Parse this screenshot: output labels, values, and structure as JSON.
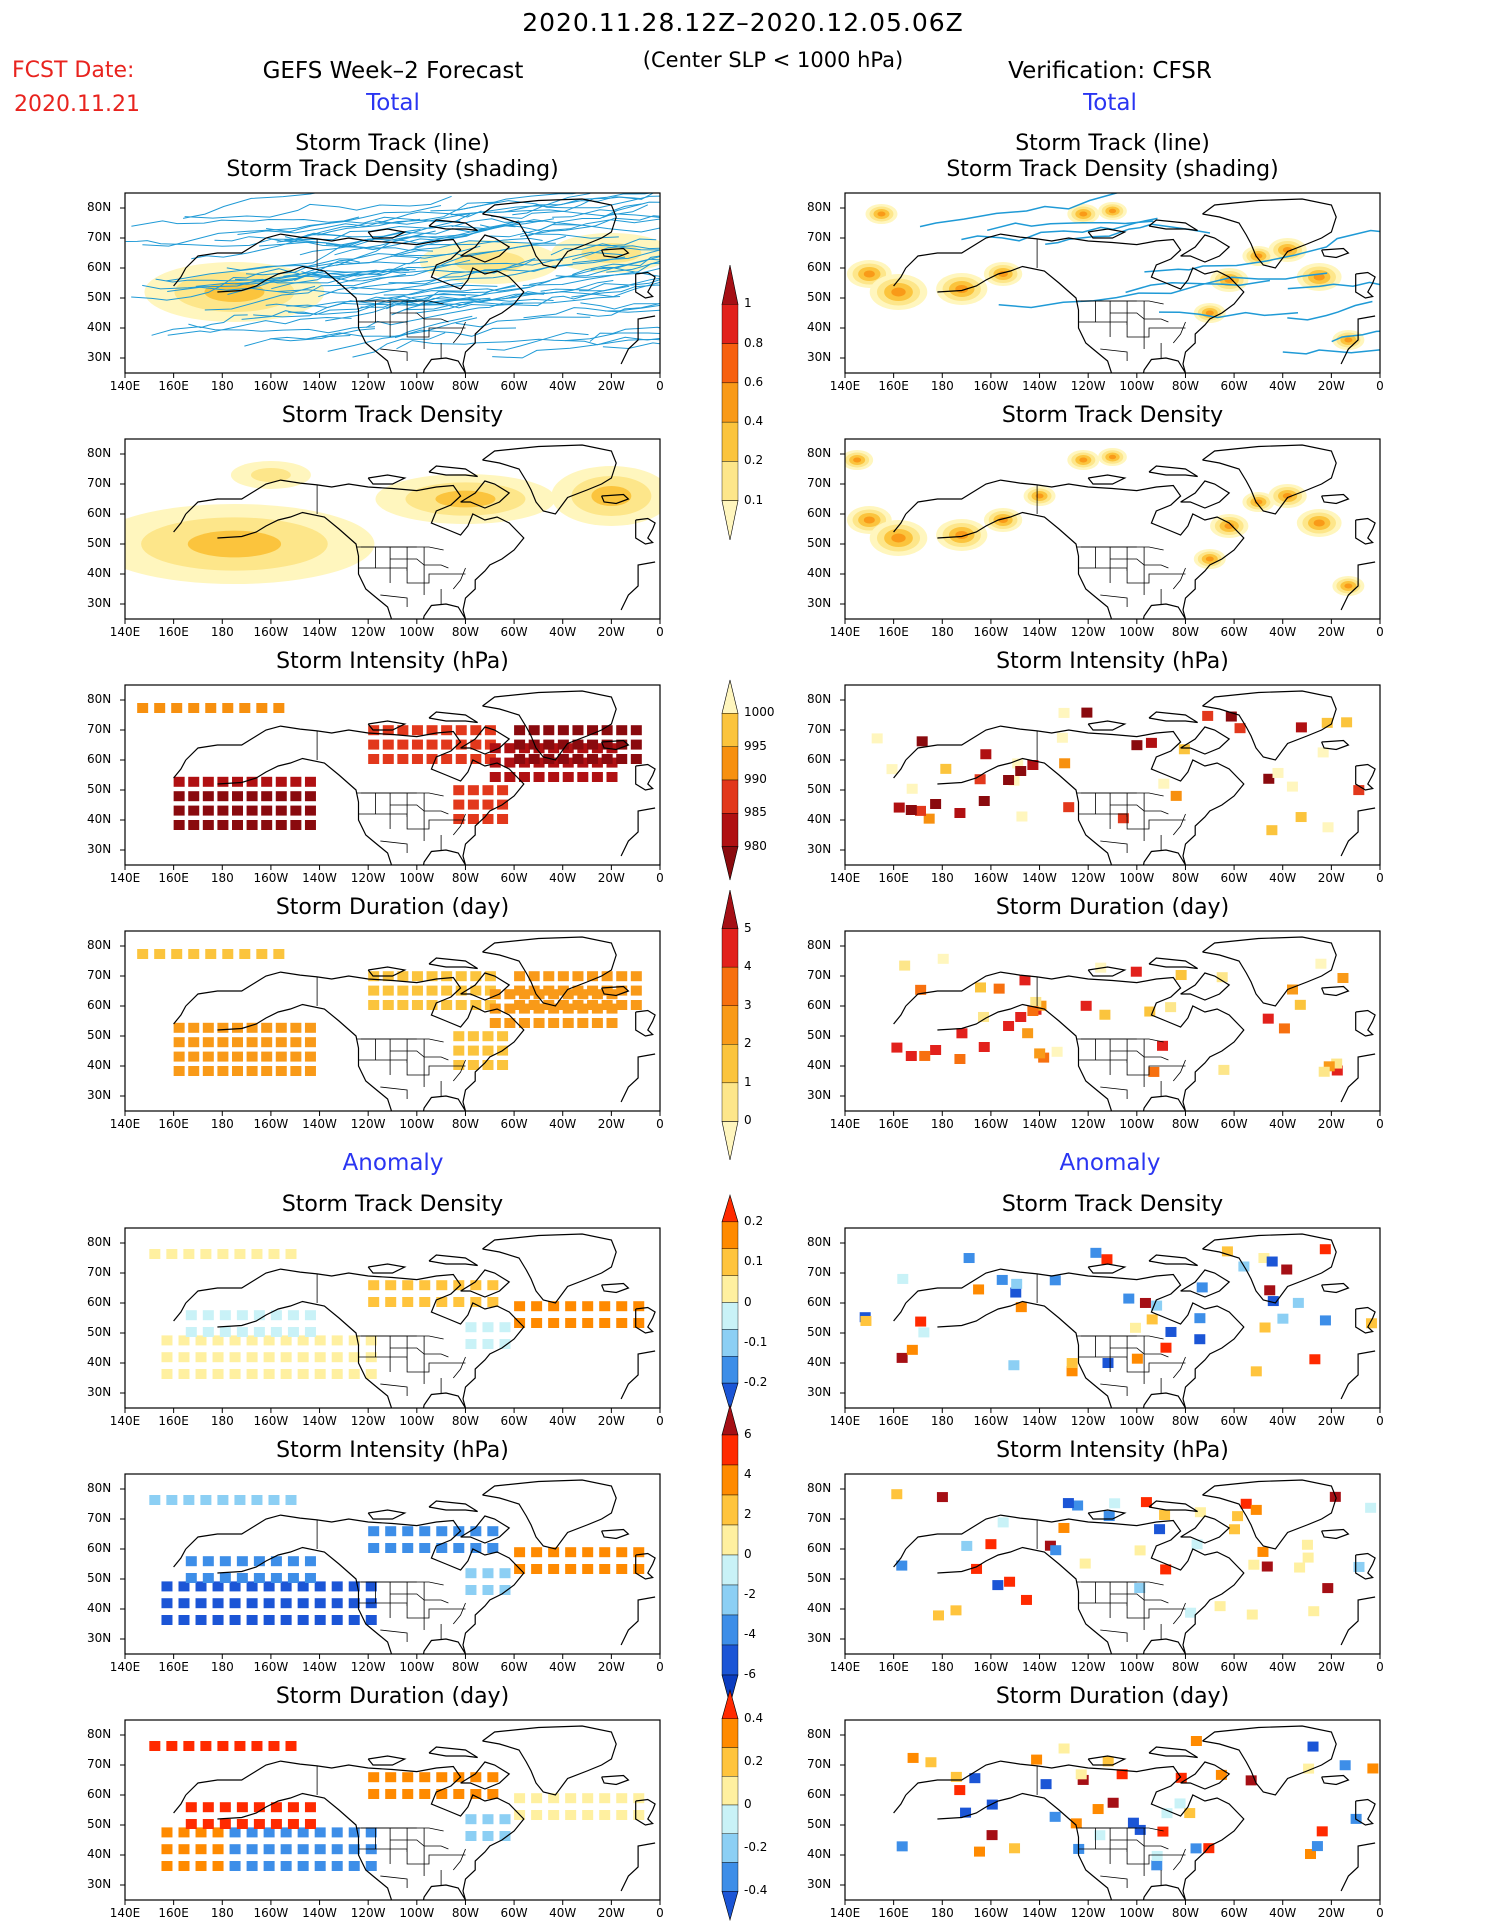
{
  "header": {
    "date_range": "2020.11.28.12Z–2020.12.05.06Z",
    "criterion": "(Center SLP < 1000 hPa)",
    "fcst_date_label": "FCST Date:",
    "fcst_date_value": "2020.11.21",
    "left_title": "GEFS Week–2 Forecast",
    "right_title": "Verification: CFSR",
    "total_label": "Total",
    "anomaly_label": "Anomaly"
  },
  "panel_titles": {
    "track_line_1": "Storm Track (line)",
    "track_line_2": "Storm Track Density (shading)",
    "density": "Storm Track Density",
    "intensity": "Storm Intensity (hPa)",
    "duration": "Storm Duration (day)"
  },
  "axes": {
    "lon_ticks": [
      "140E",
      "160E",
      "180",
      "160W",
      "140W",
      "120W",
      "100W",
      "80W",
      "60W",
      "40W",
      "20W",
      "0"
    ],
    "lat_ticks": [
      "80N",
      "70N",
      "60N",
      "50N",
      "40N",
      "30N"
    ]
  },
  "colorbars": {
    "density_total": {
      "labels": [
        "1",
        "0.8",
        "0.6",
        "0.4",
        "0.2",
        "0.1"
      ],
      "colors": [
        "#a50f15",
        "#e2211c",
        "#f7600f",
        "#f99a18",
        "#fbc43d",
        "#fde68a",
        "#fff6be"
      ]
    },
    "intensity_total": {
      "labels": [
        "1000",
        "995",
        "990",
        "985",
        "980"
      ],
      "colors": [
        "#fff6be",
        "#fbc43d",
        "#f7900f",
        "#e2381c",
        "#b01012",
        "#8a0a0e"
      ]
    },
    "duration_total": {
      "labels": [
        "5",
        "4",
        "3",
        "2",
        "1",
        "0"
      ],
      "colors": [
        "#a50f15",
        "#e2211c",
        "#f7700f",
        "#f99a18",
        "#fbc43d",
        "#fde68a",
        "#fff6be"
      ]
    },
    "density_anom": {
      "labels": [
        "0.2",
        "0.1",
        "0",
        "-0.1",
        "-0.2"
      ],
      "colors": [
        "#ff2a00",
        "#ff8a00",
        "#ffc43d",
        "#fff0a0",
        "#c9f2f7",
        "#8ccff4",
        "#3d8ee8",
        "#1b55d6"
      ]
    },
    "intensity_anom": {
      "labels": [
        "6",
        "4",
        "2",
        "0",
        "-2",
        "-4",
        "-6"
      ],
      "colors": [
        "#a50f15",
        "#ff2a00",
        "#ff8a00",
        "#ffc43d",
        "#fff0a0",
        "#c9f2f7",
        "#8ccff4",
        "#3d8ee8",
        "#1b55d6",
        "#0a3cc0"
      ]
    },
    "duration_anom": {
      "labels": [
        "0.4",
        "0.2",
        "0",
        "-0.2",
        "-0.4"
      ],
      "colors": [
        "#ff2a00",
        "#ff8a00",
        "#ffc43d",
        "#fff0a0",
        "#c9f2f7",
        "#8ccff4",
        "#3d8ee8",
        "#1b55d6"
      ]
    }
  },
  "colors": {
    "track_line": "#1f9ad6",
    "accent_red": "#e8231e",
    "accent_blue": "#2a35f2"
  }
}
